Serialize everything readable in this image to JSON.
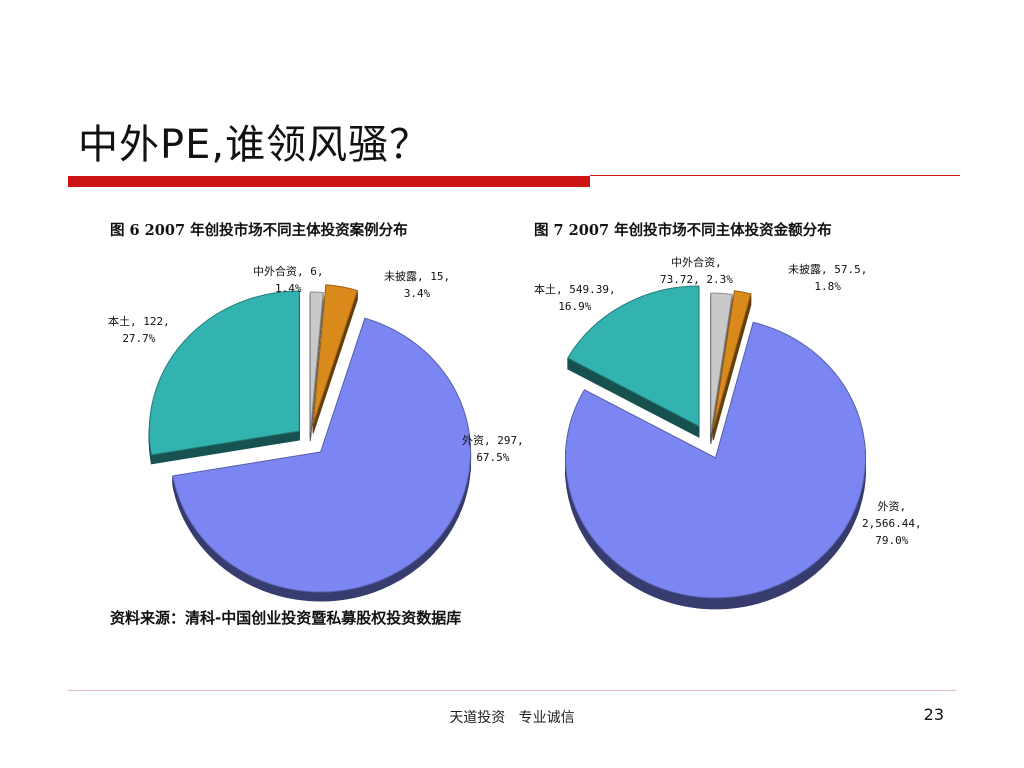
{
  "slide": {
    "title": "中外PE,谁领风骚？",
    "source": "资料来源：清科-中国创业投资暨私募股权投资数据库",
    "footer": "天道投资   专业诚信",
    "page_number": "23"
  },
  "colors": {
    "title_rule": "#cc1414",
    "foreign": "#7b86f3",
    "domestic": "#33b3b0",
    "joint_venture": "#c9c9c9",
    "undisclosed": "#d98a1b"
  },
  "chart_data": [
    {
      "type": "pie",
      "title": "图 6 2007 年创投市场不同主体投资案例分布",
      "slices": [
        {
          "name": "中外合资",
          "value": 6,
          "percent": 1.4,
          "label_lines": [
            "中外合资, 6,",
            "1.4%"
          ],
          "color": "#c9c9c9"
        },
        {
          "name": "未披露",
          "value": 15,
          "percent": 3.4,
          "label_lines": [
            "未披露, 15,",
            "3.4%"
          ],
          "color": "#d98a1b"
        },
        {
          "name": "外资",
          "value": 297,
          "percent": 67.5,
          "label_lines": [
            "外资, 297,",
            "67.5%"
          ],
          "color": "#7b86f3"
        },
        {
          "name": "本土",
          "value": 122,
          "percent": 27.7,
          "label_lines": [
            "本土, 122,",
            "27.7%"
          ],
          "color": "#33b3b0"
        }
      ]
    },
    {
      "type": "pie",
      "title": "图 7 2007 年创投市场不同主体投资金额分布",
      "slices": [
        {
          "name": "中外合资",
          "value": 73.72,
          "percent": 2.3,
          "label_lines": [
            "中外合资,",
            "73.72, 2.3%"
          ],
          "color": "#c9c9c9"
        },
        {
          "name": "未披露",
          "value": 57.5,
          "percent": 1.8,
          "label_lines": [
            "未披露, 57.5,",
            "1.8%"
          ],
          "color": "#d98a1b"
        },
        {
          "name": "外资",
          "value": 2566.44,
          "percent": 79.0,
          "label_lines": [
            "外资,",
            "2,566.44,",
            "79.0%"
          ],
          "color": "#7b86f3"
        },
        {
          "name": "本土",
          "value": 549.39,
          "percent": 16.9,
          "label_lines": [
            "本土, 549.39,",
            "16.9%"
          ],
          "color": "#33b3b0"
        }
      ]
    }
  ]
}
